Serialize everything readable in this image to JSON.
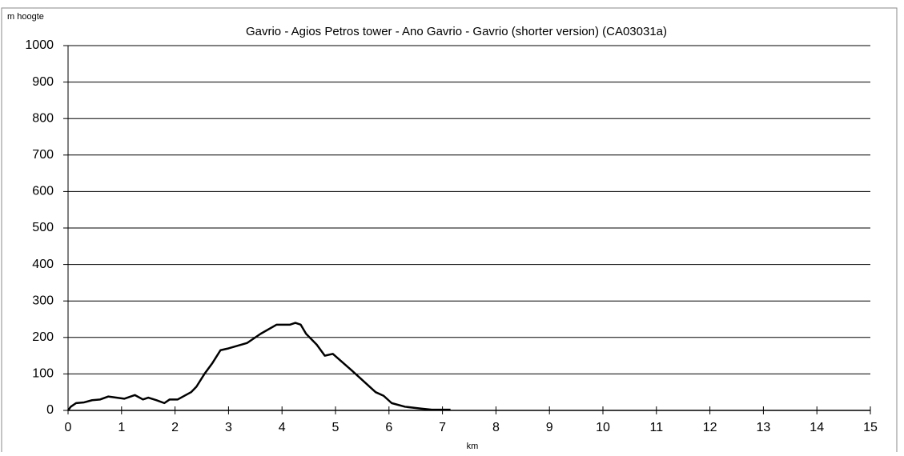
{
  "chart_data": {
    "type": "line",
    "title": "Gavrio - Agios Petros tower - Ano Gavrio - Gavrio  (shorter version) (CA03031a)",
    "y_label": "m hoogte",
    "x_label": "km",
    "x": [
      0,
      0.05,
      0.15,
      0.3,
      0.45,
      0.6,
      0.75,
      0.9,
      1.05,
      1.25,
      1.4,
      1.5,
      1.65,
      1.8,
      1.9,
      2.05,
      2.3,
      2.4,
      2.55,
      2.7,
      2.85,
      3.0,
      3.35,
      3.6,
      3.9,
      4.15,
      4.25,
      4.35,
      4.45,
      4.65,
      4.8,
      4.95,
      5.3,
      5.6,
      5.75,
      5.9,
      6.05,
      6.3,
      6.6,
      6.8,
      7.15
    ],
    "series": [
      {
        "color": "#000000",
        "values": [
          0,
          10,
          20,
          22,
          28,
          30,
          38,
          35,
          32,
          42,
          30,
          35,
          28,
          20,
          30,
          30,
          50,
          65,
          100,
          130,
          165,
          170,
          185,
          210,
          235,
          235,
          240,
          235,
          210,
          180,
          150,
          155,
          110,
          70,
          50,
          40,
          20,
          10,
          5,
          2,
          2
        ]
      }
    ],
    "xlim": [
      0,
      15
    ],
    "xticks": [
      0,
      1,
      2,
      3,
      4,
      5,
      6,
      7,
      8,
      9,
      10,
      11,
      12,
      13,
      14,
      15
    ],
    "ylim": [
      0,
      1000
    ],
    "yticks": [
      0,
      100,
      200,
      300,
      400,
      500,
      600,
      700,
      800,
      900,
      1000
    ],
    "grid": true
  }
}
